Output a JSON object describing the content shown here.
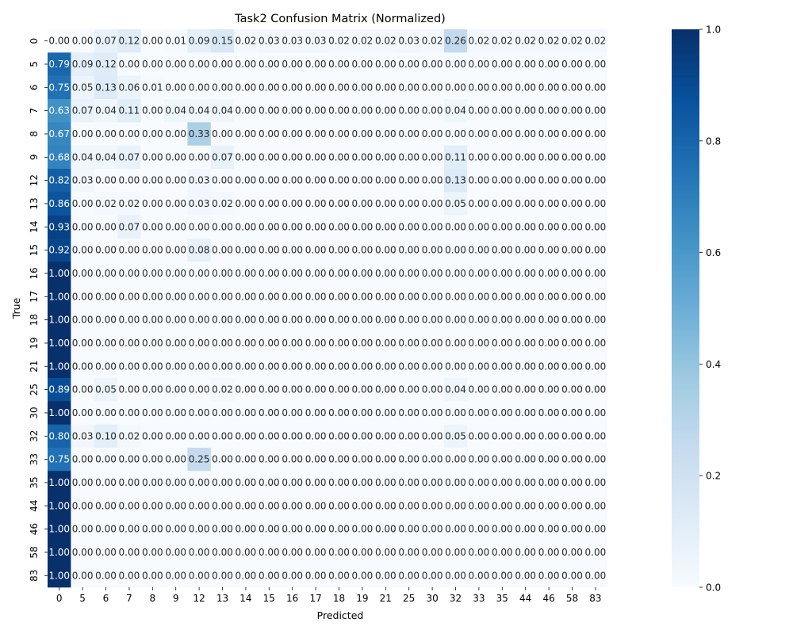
{
  "chart_data": {
    "type": "heatmap",
    "title": "Task2 Confusion Matrix (Normalized)",
    "xlabel": "Predicted",
    "ylabel": "True",
    "colormap": "Blues",
    "value_format": "0.00",
    "x_labels": [
      "0",
      "5",
      "6",
      "7",
      "8",
      "9",
      "12",
      "13",
      "14",
      "15",
      "16",
      "17",
      "18",
      "19",
      "21",
      "25",
      "30",
      "32",
      "33",
      "35",
      "44",
      "46",
      "58",
      "83"
    ],
    "y_labels": [
      "0",
      "5",
      "6",
      "7",
      "8",
      "9",
      "12",
      "13",
      "14",
      "15",
      "16",
      "17",
      "18",
      "19",
      "21",
      "25",
      "30",
      "32",
      "33",
      "35",
      "44",
      "46",
      "58",
      "83"
    ],
    "matrix": [
      [
        0.0,
        0.0,
        0.07,
        0.12,
        0.0,
        0.01,
        0.09,
        0.15,
        0.02,
        0.03,
        0.03,
        0.03,
        0.02,
        0.02,
        0.02,
        0.03,
        0.02,
        0.26,
        0.02,
        0.02,
        0.02,
        0.02,
        0.02,
        0.02
      ],
      [
        0.79,
        0.09,
        0.12,
        0.0,
        0.0,
        0.0,
        0.0,
        0.0,
        0.0,
        0.0,
        0.0,
        0.0,
        0.0,
        0.0,
        0.0,
        0.0,
        0.0,
        0.0,
        0.0,
        0.0,
        0.0,
        0.0,
        0.0,
        0.0
      ],
      [
        0.75,
        0.05,
        0.13,
        0.06,
        0.01,
        0.0,
        0.0,
        0.0,
        0.0,
        0.0,
        0.0,
        0.0,
        0.0,
        0.0,
        0.0,
        0.0,
        0.0,
        0.0,
        0.0,
        0.0,
        0.0,
        0.0,
        0.0,
        0.0
      ],
      [
        0.63,
        0.07,
        0.04,
        0.11,
        0.0,
        0.04,
        0.04,
        0.04,
        0.0,
        0.0,
        0.0,
        0.0,
        0.0,
        0.0,
        0.0,
        0.0,
        0.0,
        0.04,
        0.0,
        0.0,
        0.0,
        0.0,
        0.0,
        0.0
      ],
      [
        0.67,
        0.0,
        0.0,
        0.0,
        0.0,
        0.0,
        0.33,
        0.0,
        0.0,
        0.0,
        0.0,
        0.0,
        0.0,
        0.0,
        0.0,
        0.0,
        0.0,
        0.0,
        0.0,
        0.0,
        0.0,
        0.0,
        0.0,
        0.0
      ],
      [
        0.68,
        0.04,
        0.04,
        0.07,
        0.0,
        0.0,
        0.0,
        0.07,
        0.0,
        0.0,
        0.0,
        0.0,
        0.0,
        0.0,
        0.0,
        0.0,
        0.0,
        0.11,
        0.0,
        0.0,
        0.0,
        0.0,
        0.0,
        0.0
      ],
      [
        0.82,
        0.03,
        0.0,
        0.0,
        0.0,
        0.0,
        0.03,
        0.0,
        0.0,
        0.0,
        0.0,
        0.0,
        0.0,
        0.0,
        0.0,
        0.0,
        0.0,
        0.13,
        0.0,
        0.0,
        0.0,
        0.0,
        0.0,
        0.0
      ],
      [
        0.86,
        0.0,
        0.02,
        0.02,
        0.0,
        0.0,
        0.03,
        0.02,
        0.0,
        0.0,
        0.0,
        0.0,
        0.0,
        0.0,
        0.0,
        0.0,
        0.0,
        0.05,
        0.0,
        0.0,
        0.0,
        0.0,
        0.0,
        0.0
      ],
      [
        0.93,
        0.0,
        0.0,
        0.07,
        0.0,
        0.0,
        0.0,
        0.0,
        0.0,
        0.0,
        0.0,
        0.0,
        0.0,
        0.0,
        0.0,
        0.0,
        0.0,
        0.0,
        0.0,
        0.0,
        0.0,
        0.0,
        0.0,
        0.0
      ],
      [
        0.92,
        0.0,
        0.0,
        0.0,
        0.0,
        0.0,
        0.08,
        0.0,
        0.0,
        0.0,
        0.0,
        0.0,
        0.0,
        0.0,
        0.0,
        0.0,
        0.0,
        0.0,
        0.0,
        0.0,
        0.0,
        0.0,
        0.0,
        0.0
      ],
      [
        1.0,
        0.0,
        0.0,
        0.0,
        0.0,
        0.0,
        0.0,
        0.0,
        0.0,
        0.0,
        0.0,
        0.0,
        0.0,
        0.0,
        0.0,
        0.0,
        0.0,
        0.0,
        0.0,
        0.0,
        0.0,
        0.0,
        0.0,
        0.0
      ],
      [
        1.0,
        0.0,
        0.0,
        0.0,
        0.0,
        0.0,
        0.0,
        0.0,
        0.0,
        0.0,
        0.0,
        0.0,
        0.0,
        0.0,
        0.0,
        0.0,
        0.0,
        0.0,
        0.0,
        0.0,
        0.0,
        0.0,
        0.0,
        0.0
      ],
      [
        1.0,
        0.0,
        0.0,
        0.0,
        0.0,
        0.0,
        0.0,
        0.0,
        0.0,
        0.0,
        0.0,
        0.0,
        0.0,
        0.0,
        0.0,
        0.0,
        0.0,
        0.0,
        0.0,
        0.0,
        0.0,
        0.0,
        0.0,
        0.0
      ],
      [
        1.0,
        0.0,
        0.0,
        0.0,
        0.0,
        0.0,
        0.0,
        0.0,
        0.0,
        0.0,
        0.0,
        0.0,
        0.0,
        0.0,
        0.0,
        0.0,
        0.0,
        0.0,
        0.0,
        0.0,
        0.0,
        0.0,
        0.0,
        0.0
      ],
      [
        1.0,
        0.0,
        0.0,
        0.0,
        0.0,
        0.0,
        0.0,
        0.0,
        0.0,
        0.0,
        0.0,
        0.0,
        0.0,
        0.0,
        0.0,
        0.0,
        0.0,
        0.0,
        0.0,
        0.0,
        0.0,
        0.0,
        0.0,
        0.0
      ],
      [
        0.89,
        0.0,
        0.05,
        0.0,
        0.0,
        0.0,
        0.0,
        0.02,
        0.0,
        0.0,
        0.0,
        0.0,
        0.0,
        0.0,
        0.0,
        0.0,
        0.0,
        0.04,
        0.0,
        0.0,
        0.0,
        0.0,
        0.0,
        0.0
      ],
      [
        1.0,
        0.0,
        0.0,
        0.0,
        0.0,
        0.0,
        0.0,
        0.0,
        0.0,
        0.0,
        0.0,
        0.0,
        0.0,
        0.0,
        0.0,
        0.0,
        0.0,
        0.0,
        0.0,
        0.0,
        0.0,
        0.0,
        0.0,
        0.0
      ],
      [
        0.8,
        0.03,
        0.1,
        0.02,
        0.0,
        0.0,
        0.0,
        0.0,
        0.0,
        0.0,
        0.0,
        0.0,
        0.0,
        0.0,
        0.0,
        0.0,
        0.0,
        0.05,
        0.0,
        0.0,
        0.0,
        0.0,
        0.0,
        0.0
      ],
      [
        0.75,
        0.0,
        0.0,
        0.0,
        0.0,
        0.0,
        0.25,
        0.0,
        0.0,
        0.0,
        0.0,
        0.0,
        0.0,
        0.0,
        0.0,
        0.0,
        0.0,
        0.0,
        0.0,
        0.0,
        0.0,
        0.0,
        0.0,
        0.0
      ],
      [
        1.0,
        0.0,
        0.0,
        0.0,
        0.0,
        0.0,
        0.0,
        0.0,
        0.0,
        0.0,
        0.0,
        0.0,
        0.0,
        0.0,
        0.0,
        0.0,
        0.0,
        0.0,
        0.0,
        0.0,
        0.0,
        0.0,
        0.0,
        0.0
      ],
      [
        1.0,
        0.0,
        0.0,
        0.0,
        0.0,
        0.0,
        0.0,
        0.0,
        0.0,
        0.0,
        0.0,
        0.0,
        0.0,
        0.0,
        0.0,
        0.0,
        0.0,
        0.0,
        0.0,
        0.0,
        0.0,
        0.0,
        0.0,
        0.0
      ],
      [
        1.0,
        0.0,
        0.0,
        0.0,
        0.0,
        0.0,
        0.0,
        0.0,
        0.0,
        0.0,
        0.0,
        0.0,
        0.0,
        0.0,
        0.0,
        0.0,
        0.0,
        0.0,
        0.0,
        0.0,
        0.0,
        0.0,
        0.0,
        0.0
      ],
      [
        1.0,
        0.0,
        0.0,
        0.0,
        0.0,
        0.0,
        0.0,
        0.0,
        0.0,
        0.0,
        0.0,
        0.0,
        0.0,
        0.0,
        0.0,
        0.0,
        0.0,
        0.0,
        0.0,
        0.0,
        0.0,
        0.0,
        0.0,
        0.0
      ],
      [
        1.0,
        0.0,
        0.0,
        0.0,
        0.0,
        0.0,
        0.0,
        0.0,
        0.0,
        0.0,
        0.0,
        0.0,
        0.0,
        0.0,
        0.0,
        0.0,
        0.0,
        0.0,
        0.0,
        0.0,
        0.0,
        0.0,
        0.0,
        0.0
      ]
    ],
    "colorbar": {
      "range": [
        0.0,
        1.0
      ],
      "ticks": [
        0.0,
        0.2,
        0.4,
        0.6,
        0.8,
        1.0
      ],
      "tick_labels": [
        "0.0",
        "0.2",
        "0.4",
        "0.6",
        "0.8",
        "1.0"
      ]
    }
  }
}
